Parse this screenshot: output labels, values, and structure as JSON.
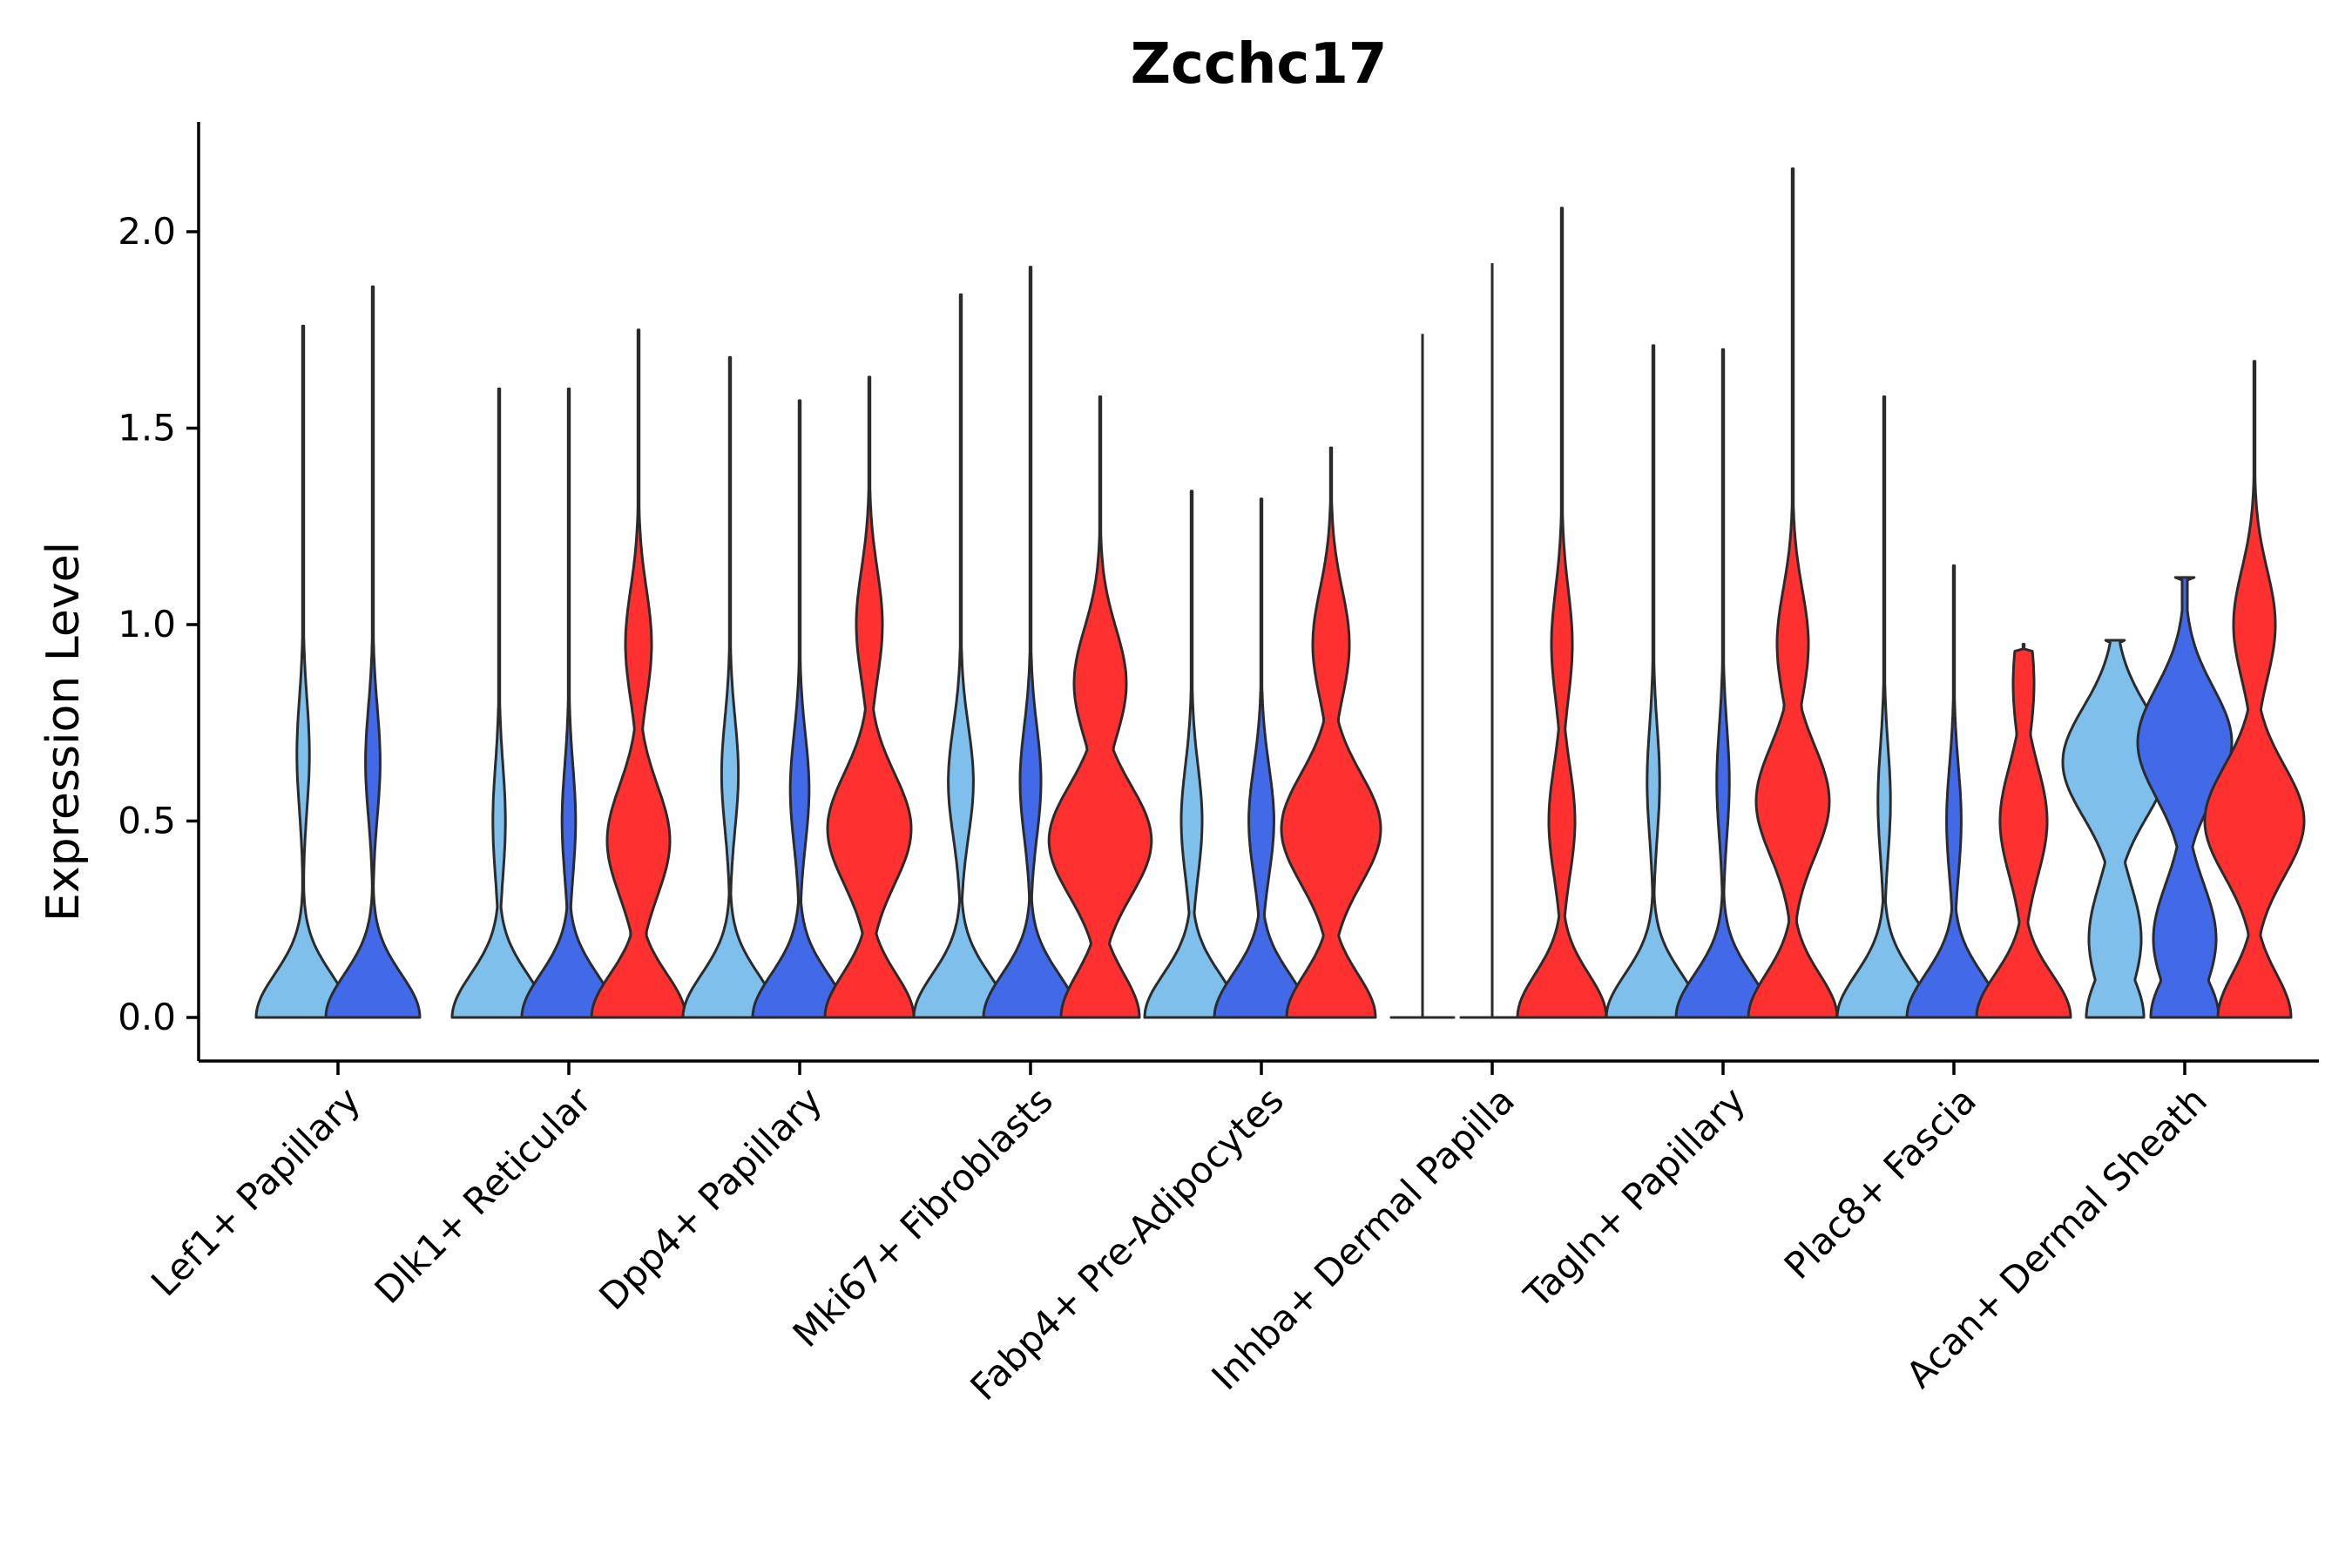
{
  "chart_data": {
    "type": "violin",
    "title": "Zcchc17",
    "xlabel": "",
    "ylabel": "Expression Level",
    "ylim": [
      -0.1,
      2.28
    ],
    "yticks": [
      0.0,
      0.5,
      1.0,
      1.5,
      2.0
    ],
    "ytick_labels": [
      "0.0",
      "0.5",
      "1.0",
      "1.5",
      "2.0"
    ],
    "groups": [
      {
        "name": "group-light-blue",
        "color": "#7ebfec"
      },
      {
        "name": "group-blue",
        "color": "#4169e8"
      },
      {
        "name": "group-red",
        "color": "#ff3030"
      }
    ],
    "categories": [
      {
        "label": "Lef1+ Papillary",
        "violins": [
          {
            "group": 0,
            "max": 1.76,
            "modes": [
              [
                0.0,
                0.9
              ],
              [
                0.67,
                0.12
              ]
            ]
          },
          {
            "group": 1,
            "max": 1.86,
            "modes": [
              [
                0.0,
                0.9
              ],
              [
                0.65,
                0.14
              ]
            ]
          }
        ]
      },
      {
        "label": "Dlk1+ Reticular",
        "violins": [
          {
            "group": 0,
            "max": 1.6,
            "modes": [
              [
                0.0,
                0.9
              ],
              [
                0.5,
                0.12
              ]
            ]
          },
          {
            "group": 1,
            "max": 1.6,
            "modes": [
              [
                0.0,
                0.9
              ],
              [
                0.5,
                0.13
              ]
            ]
          },
          {
            "group": 2,
            "max": 1.75,
            "modes": [
              [
                0.0,
                0.9
              ],
              [
                0.45,
                0.6
              ],
              [
                0.95,
                0.25
              ]
            ]
          }
        ]
      },
      {
        "label": "Dpp4+ Papillary",
        "violins": [
          {
            "group": 0,
            "max": 1.68,
            "modes": [
              [
                0.0,
                0.9
              ],
              [
                0.62,
                0.16
              ]
            ]
          },
          {
            "group": 1,
            "max": 1.57,
            "modes": [
              [
                0.0,
                0.9
              ],
              [
                0.58,
                0.18
              ]
            ]
          },
          {
            "group": 2,
            "max": 1.63,
            "modes": [
              [
                0.0,
                0.85
              ],
              [
                0.48,
                0.8
              ],
              [
                1.0,
                0.25
              ]
            ]
          }
        ]
      },
      {
        "label": "Mki67+ Fibroblasts",
        "violins": [
          {
            "group": 0,
            "max": 1.84,
            "modes": [
              [
                0.0,
                0.9
              ],
              [
                0.6,
                0.24
              ]
            ]
          },
          {
            "group": 1,
            "max": 1.91,
            "modes": [
              [
                0.0,
                0.9
              ],
              [
                0.6,
                0.2
              ]
            ]
          },
          {
            "group": 2,
            "max": 1.58,
            "modes": [
              [
                0.0,
                0.75
              ],
              [
                0.45,
                0.98
              ],
              [
                0.85,
                0.5
              ]
            ]
          }
        ]
      },
      {
        "label": "Fabp4+ Pre-Adipocytes",
        "violins": [
          {
            "group": 0,
            "max": 1.34,
            "modes": [
              [
                0.0,
                0.9
              ],
              [
                0.5,
                0.2
              ]
            ]
          },
          {
            "group": 1,
            "max": 1.32,
            "modes": [
              [
                0.0,
                0.9
              ],
              [
                0.5,
                0.24
              ]
            ]
          },
          {
            "group": 2,
            "max": 1.45,
            "modes": [
              [
                0.0,
                0.85
              ],
              [
                0.48,
                0.95
              ],
              [
                0.95,
                0.35
              ]
            ]
          }
        ]
      },
      {
        "label": "Inhba+ Dermal Papilla",
        "violins": [
          {
            "group": 0,
            "max": 1.74,
            "modes": [
              [
                0.0,
                0.9
              ]
            ],
            "flat": true
          },
          {
            "group": 1,
            "max": 1.92,
            "modes": [
              [
                0.0,
                0.9
              ]
            ],
            "flat": true
          },
          {
            "group": 2,
            "max": 2.06,
            "modes": [
              [
                0.0,
                0.85
              ],
              [
                0.5,
                0.25
              ],
              [
                0.95,
                0.2
              ]
            ]
          }
        ]
      },
      {
        "label": "Tagln+ Papillary",
        "violins": [
          {
            "group": 0,
            "max": 1.71,
            "modes": [
              [
                0.0,
                0.9
              ],
              [
                0.6,
                0.12
              ]
            ]
          },
          {
            "group": 1,
            "max": 1.7,
            "modes": [
              [
                0.0,
                0.9
              ],
              [
                0.6,
                0.12
              ]
            ]
          },
          {
            "group": 2,
            "max": 2.16,
            "modes": [
              [
                0.0,
                0.85
              ],
              [
                0.55,
                0.7
              ],
              [
                0.95,
                0.3
              ]
            ]
          }
        ]
      },
      {
        "label": "Plac8+ Fascia",
        "violins": [
          {
            "group": 0,
            "max": 1.58,
            "modes": [
              [
                0.0,
                0.9
              ],
              [
                0.55,
                0.12
              ]
            ]
          },
          {
            "group": 1,
            "max": 1.15,
            "modes": [
              [
                0.0,
                0.9
              ],
              [
                0.5,
                0.14
              ]
            ]
          },
          {
            "group": 2,
            "max": 0.95,
            "modes": [
              [
                0.0,
                0.9
              ],
              [
                0.5,
                0.45
              ],
              [
                0.85,
                0.2
              ]
            ]
          }
        ]
      },
      {
        "label": "Acan+ Dermal Sheath",
        "violins": [
          {
            "group": 0,
            "max": 0.96,
            "modes": [
              [
                0.0,
                0.55
              ],
              [
                0.2,
                0.5
              ],
              [
                0.65,
                1.0
              ]
            ],
            "flat_top": true
          },
          {
            "group": 1,
            "max": 1.12,
            "modes": [
              [
                0.0,
                0.65
              ],
              [
                0.2,
                0.6
              ],
              [
                0.7,
                0.9
              ]
            ],
            "flat_top": true
          },
          {
            "group": 2,
            "max": 1.67,
            "modes": [
              [
                0.0,
                0.7
              ],
              [
                0.5,
                0.95
              ],
              [
                1.0,
                0.4
              ]
            ]
          }
        ]
      }
    ]
  }
}
